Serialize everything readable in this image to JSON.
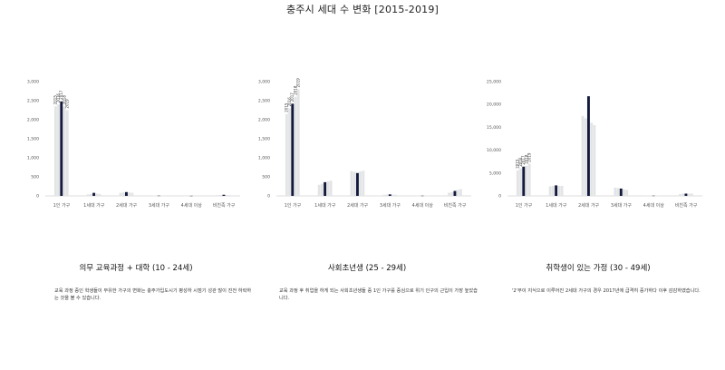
{
  "page": {
    "title": "충주시 세대 수 변화 [2015-2019]"
  },
  "colors": {
    "light": "#e2e4e6",
    "highlight": "#141a3c",
    "axis": "#bbbbbb"
  },
  "chart_data": [
    {
      "type": "bar",
      "title": "의무 교육과정 + 대학 (10 - 24세)",
      "description": "교육 과정 중인 학생들이 부유한 가구의 변화는 충주가입도시기 평성하 시점기 성관 많이 진전 하락하는 것을 볼 수 있습니다.",
      "categories": [
        "1인 가구",
        "1세대 가구",
        "2세대 가구",
        "3세대 가구",
        "4세대 이상",
        "비친족 가구"
      ],
      "ylim": [
        0,
        3000
      ],
      "yticks": [
        0,
        500,
        1000,
        1500,
        2000,
        2500,
        3000
      ],
      "ytick_labels": [
        "0",
        "500",
        "1,000",
        "1,500",
        "2,000",
        "2,500",
        "3,000"
      ],
      "legend_years": [
        "2015",
        "2016",
        "2017",
        "2018",
        "2019"
      ],
      "highlight_index": 2,
      "series": [
        {
          "name": "2015",
          "values": [
            2350,
            40,
            80,
            5,
            2,
            20
          ]
        },
        {
          "name": "2016",
          "values": [
            2400,
            50,
            90,
            5,
            2,
            25
          ]
        },
        {
          "name": "2017",
          "values": [
            2480,
            80,
            100,
            6,
            3,
            30
          ]
        },
        {
          "name": "2018",
          "values": [
            2350,
            60,
            90,
            5,
            2,
            25
          ]
        },
        {
          "name": "2019",
          "values": [
            2250,
            50,
            80,
            4,
            2,
            20
          ]
        }
      ]
    },
    {
      "type": "bar",
      "title": "사회초년생 (25 - 29세)",
      "description": "교육 과정 후 취업을 하게 되는 사회초년생들 중 1인 가구를 중심으로 위기 인구의 근입이 가장 높았습니다.",
      "categories": [
        "1인 가구",
        "1세대 가구",
        "2세대 가구",
        "3세대 가구",
        "4세대 이상",
        "비친족 가구"
      ],
      "ylim": [
        0,
        3000
      ],
      "yticks": [
        0,
        500,
        1000,
        1500,
        2000,
        2500,
        3000
      ],
      "ytick_labels": [
        "0",
        "500",
        "1,000",
        "1,500",
        "2,000",
        "2,500",
        "3,000"
      ],
      "legend_years": [
        "2015",
        "2016",
        "2017",
        "2018",
        "2019"
      ],
      "highlight_index": 2,
      "series": [
        {
          "name": "2015",
          "values": [
            2150,
            290,
            650,
            30,
            5,
            80
          ]
        },
        {
          "name": "2016",
          "values": [
            2300,
            320,
            630,
            35,
            5,
            100
          ]
        },
        {
          "name": "2017",
          "values": [
            2420,
            360,
            600,
            40,
            5,
            130
          ]
        },
        {
          "name": "2018",
          "values": [
            2600,
            380,
            640,
            35,
            5,
            160
          ]
        },
        {
          "name": "2019",
          "values": [
            2800,
            400,
            660,
            30,
            5,
            180
          ]
        }
      ]
    },
    {
      "type": "bar",
      "title": "취학생이 있는 가정 (30 - 49세)",
      "description": "'2'무이 지식으로 이루어진 2세대 가구의 경우 2017년에 급격히 증가하다 이후 감감하였습니다.",
      "categories": [
        "1인 가구",
        "1세대 가구",
        "2세대 가구",
        "3세대 가구",
        "4세대 이상",
        "비친족 가구"
      ],
      "ylim": [
        0,
        25000
      ],
      "yticks": [
        0,
        5000,
        10000,
        15000,
        20000,
        25000
      ],
      "ytick_labels": [
        "0",
        "5,000",
        "10,000",
        "15,000",
        "20,000",
        "25,000"
      ],
      "legend_years": [
        "2015",
        "2016",
        "2017",
        "2018",
        "2019"
      ],
      "highlight_index": 2,
      "series": [
        {
          "name": "2015",
          "values": [
            5600,
            2100,
            17500,
            1800,
            50,
            400
          ]
        },
        {
          "name": "2016",
          "values": [
            6000,
            2200,
            17000,
            1700,
            50,
            500
          ]
        },
        {
          "name": "2017",
          "values": [
            6400,
            2300,
            21800,
            1600,
            50,
            500
          ]
        },
        {
          "name": "2018",
          "values": [
            6600,
            2200,
            16000,
            1400,
            50,
            500
          ]
        },
        {
          "name": "2019",
          "values": [
            7000,
            2200,
            15500,
            1300,
            50,
            500
          ]
        }
      ]
    }
  ]
}
